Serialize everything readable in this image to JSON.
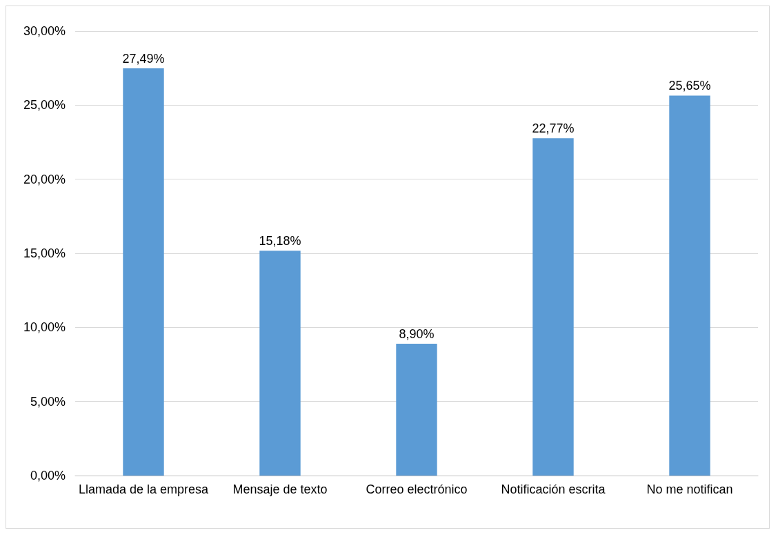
{
  "chart_data": {
    "type": "bar",
    "categories": [
      "Llamada de la empresa",
      "Mensaje de texto",
      "Correo electrónico",
      "Notificación escrita",
      "No me notifican"
    ],
    "values": [
      27.49,
      15.18,
      8.9,
      22.77,
      25.65
    ],
    "value_labels": [
      "27,49%",
      "15,18%",
      "8,90%",
      "22,77%",
      "25,65%"
    ],
    "color": "#5b9bd5",
    "ylim": [
      0,
      30
    ],
    "yticks": [
      {
        "value": 0,
        "label": "0,00%"
      },
      {
        "value": 5,
        "label": "5,00%"
      },
      {
        "value": 10,
        "label": "10,00%"
      },
      {
        "value": 15,
        "label": "15,00%"
      },
      {
        "value": 20,
        "label": "20,00%"
      },
      {
        "value": 25,
        "label": "25,00%"
      },
      {
        "value": 30,
        "label": "30,00%"
      }
    ],
    "grid": "y"
  }
}
